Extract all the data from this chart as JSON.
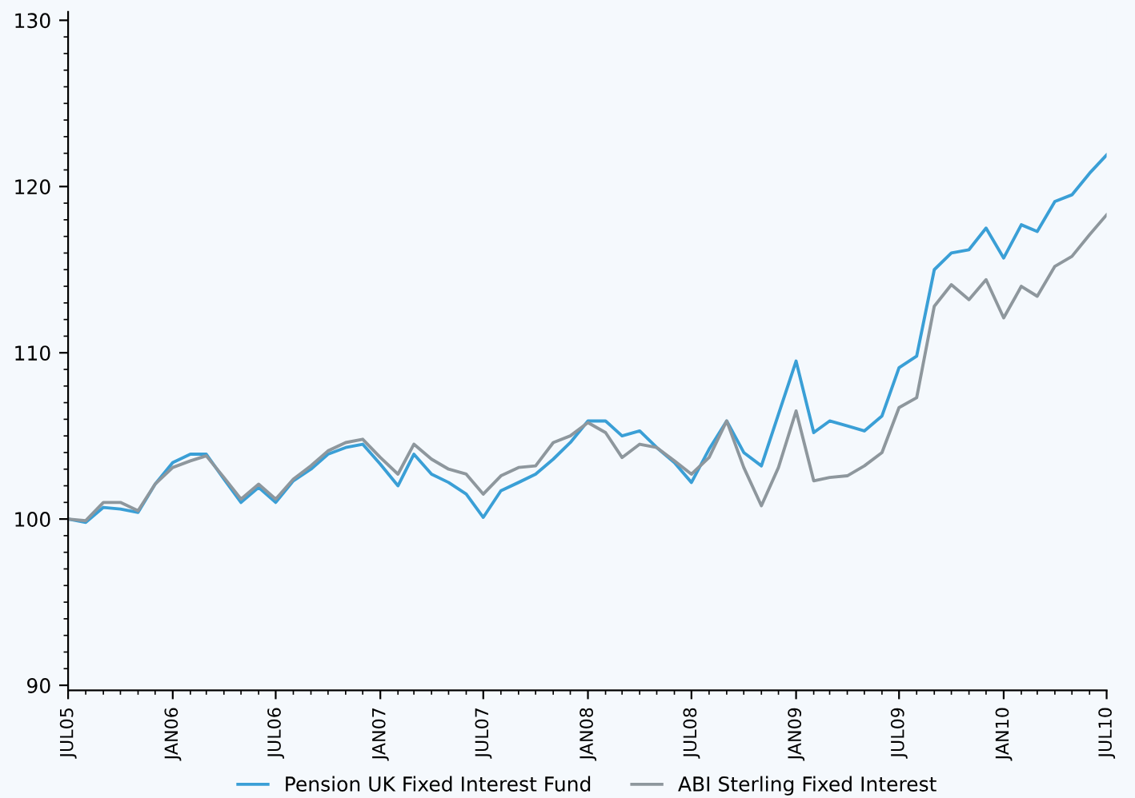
{
  "chart_data": {
    "type": "line",
    "x": [
      "2005-07",
      "2005-08",
      "2005-09",
      "2005-10",
      "2005-11",
      "2005-12",
      "2006-01",
      "2006-02",
      "2006-03",
      "2006-04",
      "2006-05",
      "2006-06",
      "2006-07",
      "2006-08",
      "2006-09",
      "2006-10",
      "2006-11",
      "2006-12",
      "2007-01",
      "2007-02",
      "2007-03",
      "2007-04",
      "2007-05",
      "2007-06",
      "2007-07",
      "2007-08",
      "2007-09",
      "2007-10",
      "2007-11",
      "2007-12",
      "2008-01",
      "2008-02",
      "2008-03",
      "2008-04",
      "2008-05",
      "2008-06",
      "2008-07",
      "2008-08",
      "2008-09",
      "2008-10",
      "2008-11",
      "2008-12",
      "2009-01",
      "2009-02",
      "2009-03",
      "2009-04",
      "2009-05",
      "2009-06",
      "2009-07",
      "2009-08",
      "2009-09",
      "2009-10",
      "2009-11",
      "2009-12",
      "2010-01",
      "2010-02",
      "2010-03",
      "2010-04",
      "2010-05",
      "2010-06",
      "2010-07"
    ],
    "series": [
      {
        "name": "Pension UK Fixed Interest Fund",
        "color": "#3a9fd6",
        "values": [
          100,
          99.8,
          100.7,
          100.6,
          100.4,
          102.1,
          103.4,
          103.9,
          103.9,
          102.4,
          101.0,
          101.9,
          101.0,
          102.3,
          103.0,
          103.9,
          104.3,
          104.5,
          103.3,
          102.0,
          103.9,
          102.7,
          102.2,
          101.5,
          100.1,
          101.7,
          102.2,
          102.7,
          103.6,
          104.6,
          105.9,
          105.9,
          105.0,
          105.3,
          104.3,
          103.4,
          102.2,
          104.2,
          105.9,
          104.0,
          103.2,
          106.3,
          109.5,
          105.2,
          105.9,
          105.6,
          105.3,
          106.2,
          109.1,
          109.8,
          115.0,
          116.0,
          116.2,
          117.5,
          115.7,
          117.7,
          117.3,
          119.1,
          119.5,
          120.8,
          121.9
        ]
      },
      {
        "name": "ABI Sterling Fixed Interest",
        "color": "#8e979d",
        "values": [
          100,
          99.9,
          101.0,
          101.0,
          100.5,
          102.1,
          103.1,
          103.5,
          103.8,
          102.5,
          101.2,
          102.1,
          101.2,
          102.4,
          103.2,
          104.1,
          104.6,
          104.8,
          103.7,
          102.7,
          104.5,
          103.6,
          103.0,
          102.7,
          101.5,
          102.6,
          103.1,
          103.2,
          104.6,
          105.0,
          105.8,
          105.2,
          103.7,
          104.5,
          104.3,
          103.5,
          102.7,
          103.7,
          105.9,
          103.1,
          100.8,
          103.1,
          106.5,
          102.3,
          102.5,
          102.6,
          103.2,
          104.0,
          106.7,
          107.3,
          112.8,
          114.1,
          113.2,
          114.4,
          112.1,
          114.0,
          113.4,
          115.2,
          115.8,
          117.1,
          118.3
        ]
      }
    ],
    "xlim": [
      "2005-07",
      "2010-07"
    ],
    "xticks": [
      {
        "value": "2005-07",
        "label": "JUL05"
      },
      {
        "value": "2006-01",
        "label": "JAN06"
      },
      {
        "value": "2006-07",
        "label": "JUL06"
      },
      {
        "value": "2007-01",
        "label": "JAN07"
      },
      {
        "value": "2007-07",
        "label": "JUL07"
      },
      {
        "value": "2008-01",
        "label": "JAN08"
      },
      {
        "value": "2008-07",
        "label": "JUL08"
      },
      {
        "value": "2009-01",
        "label": "JAN09"
      },
      {
        "value": "2009-07",
        "label": "JUL09"
      },
      {
        "value": "2010-01",
        "label": "JAN10"
      },
      {
        "value": "2010-07",
        "label": "JUL10"
      }
    ],
    "ylim": [
      89.7,
      130.5
    ],
    "yticks": [
      90,
      100,
      110,
      120,
      130
    ],
    "legend": "bottom",
    "grid": false,
    "line_style": "solid",
    "marker": "none"
  }
}
